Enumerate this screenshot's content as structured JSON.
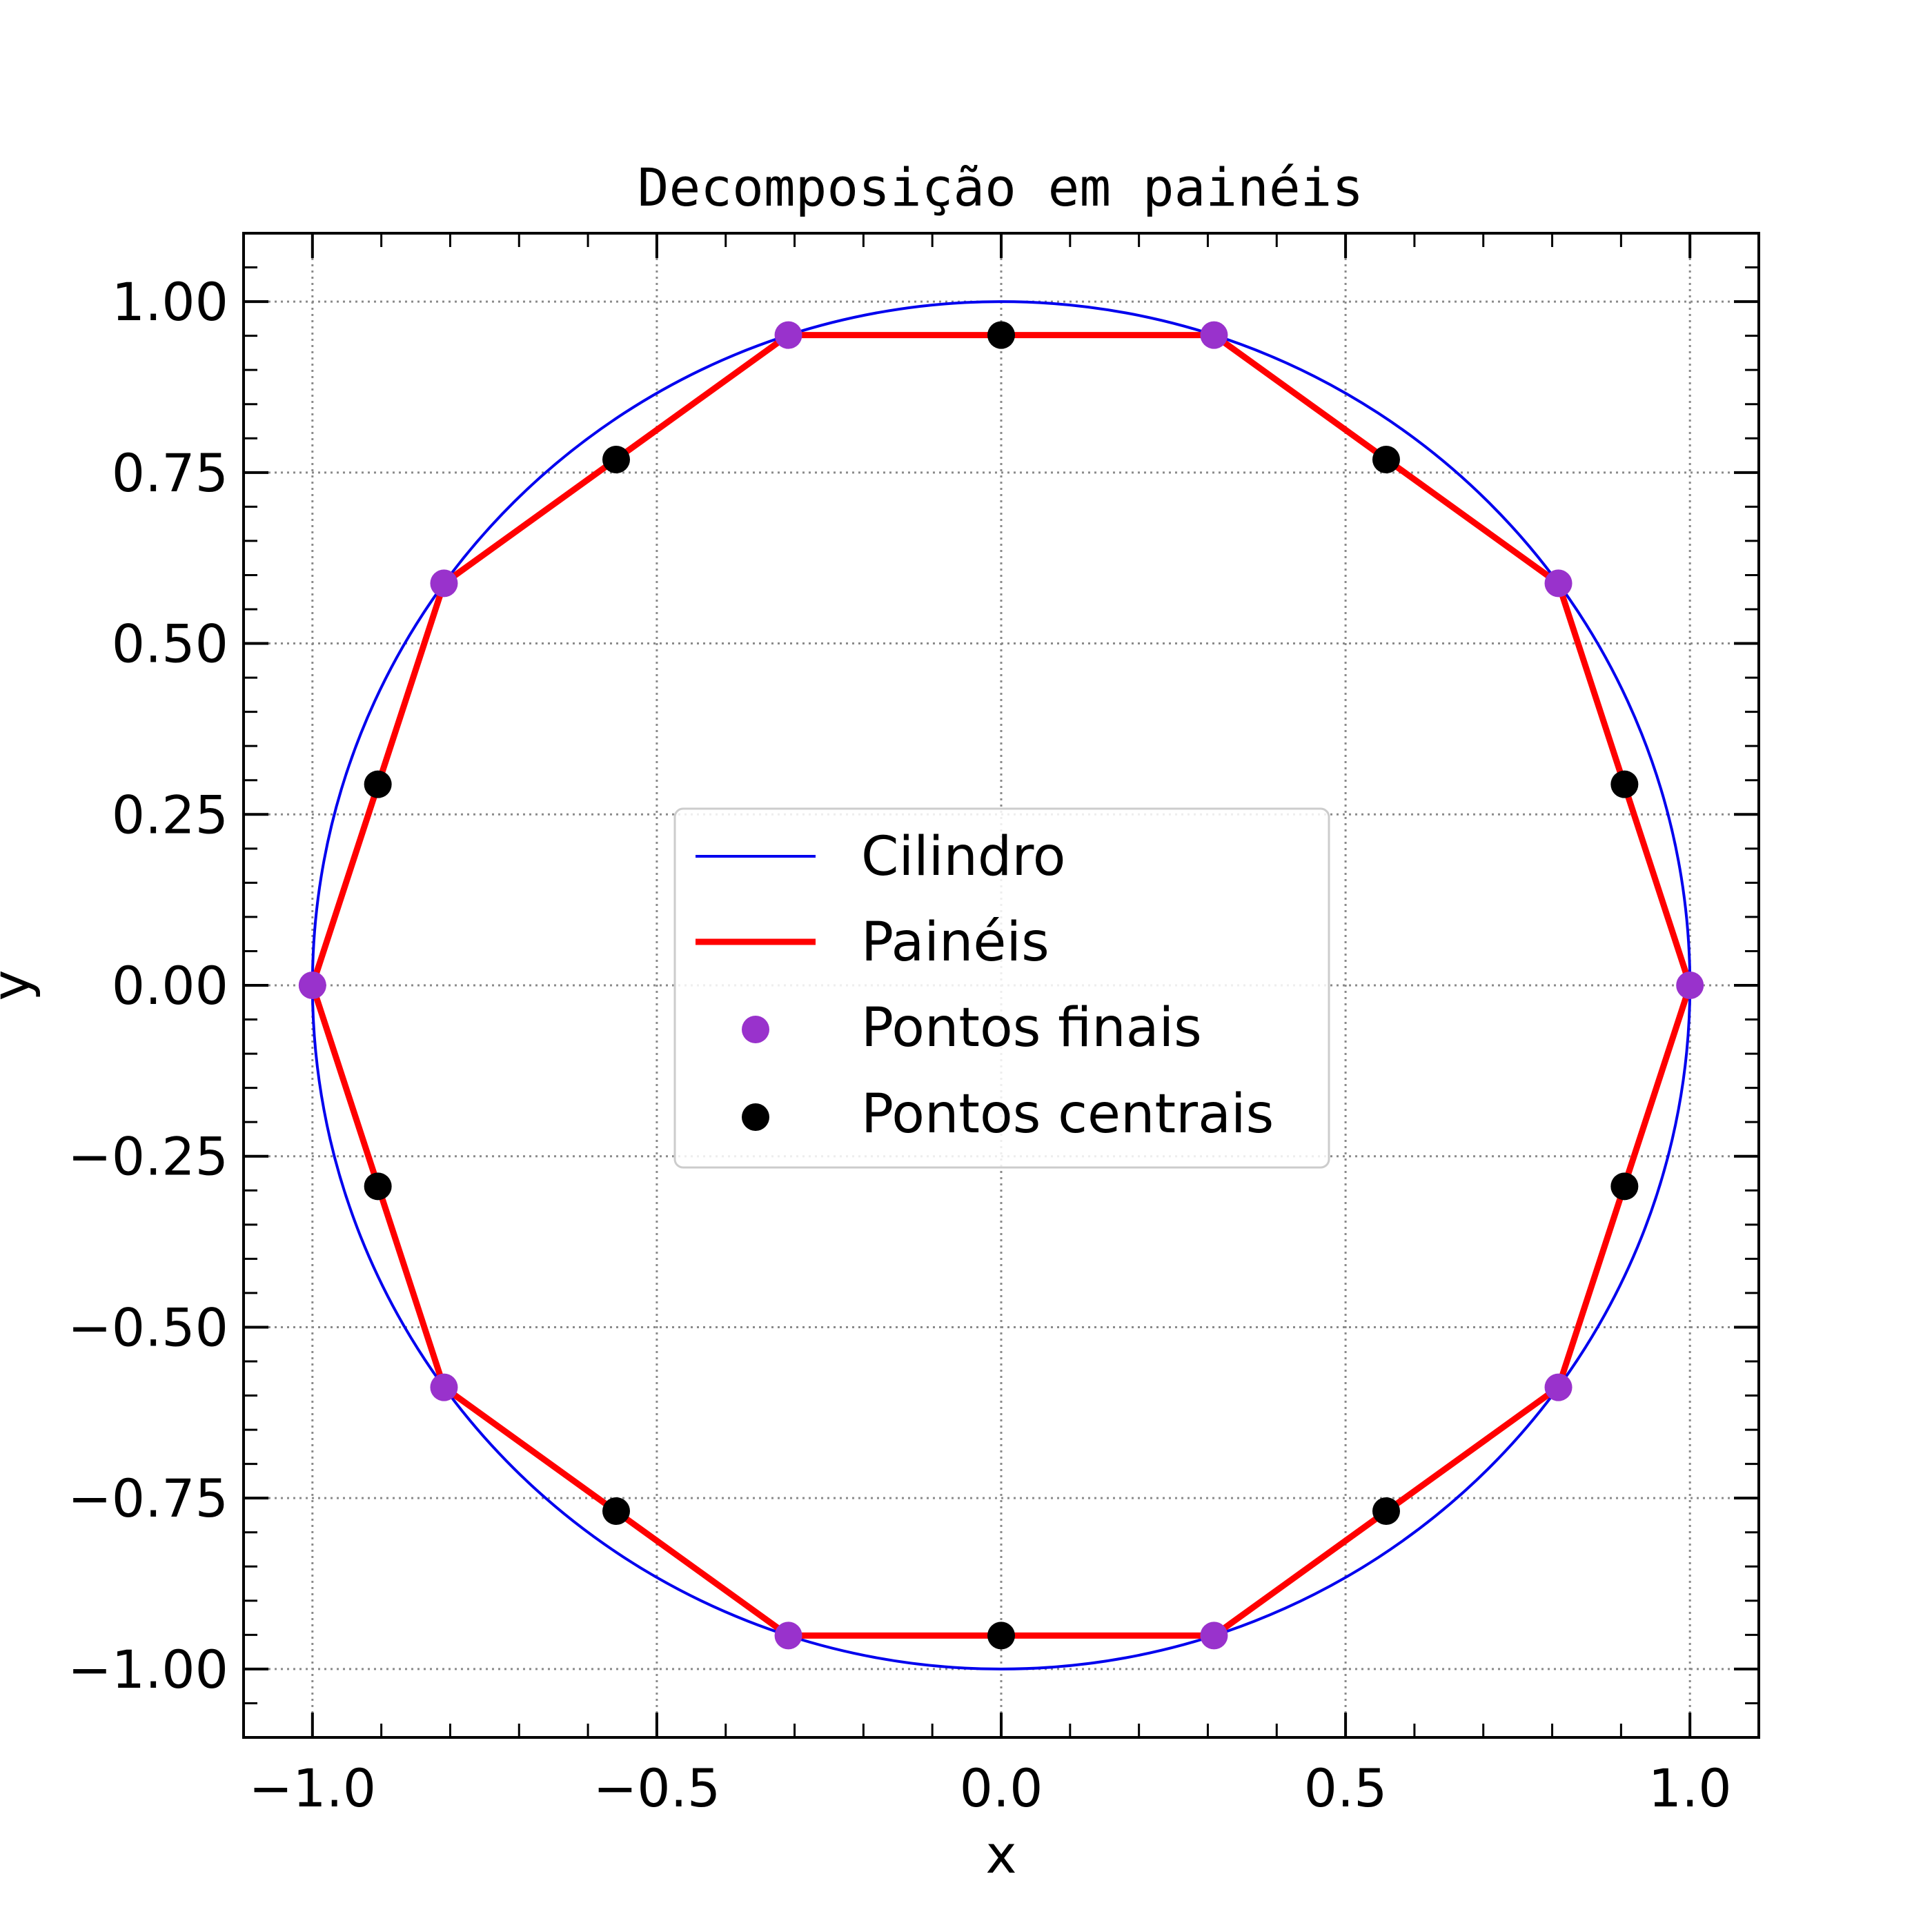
{
  "chart_data": {
    "type": "line",
    "title": "Decomposição em painéis",
    "xlabel": "x",
    "ylabel": "y",
    "xlim": [
      -1.1,
      1.1
    ],
    "ylim": [
      -1.1,
      1.1
    ],
    "grid": true,
    "grid_style": "dotted",
    "legend_position": "center",
    "x_ticks": [
      -1.0,
      -0.5,
      0.0,
      0.5,
      1.0
    ],
    "x_tick_labels": [
      "−1.0",
      "−0.5",
      "0.0",
      "0.5",
      "1.0"
    ],
    "y_ticks": [
      -1.0,
      -0.75,
      -0.5,
      -0.25,
      0.0,
      0.25,
      0.5,
      0.75,
      1.0
    ],
    "y_tick_labels": [
      "−1.00",
      "−0.75",
      "−0.50",
      "−0.25",
      "0.00",
      "0.25",
      "0.50",
      "0.75",
      "1.00"
    ],
    "series": [
      {
        "name": "Cilindro",
        "kind": "circle",
        "color": "#0000ee",
        "center": [
          0,
          0
        ],
        "radius": 1.0
      },
      {
        "name": "Painéis",
        "kind": "line",
        "color": "#ff0000",
        "x": [
          1.0,
          0.809,
          0.309,
          -0.309,
          -0.809,
          -1.0,
          -0.809,
          -0.309,
          0.309,
          0.809,
          1.0
        ],
        "y": [
          0.0,
          0.588,
          0.951,
          0.951,
          0.588,
          0.0,
          -0.588,
          -0.951,
          -0.951,
          -0.588,
          0.0
        ]
      },
      {
        "name": "Pontos finais",
        "kind": "scatter",
        "color": "#9932cc",
        "x": [
          1.0,
          0.809,
          0.309,
          -0.309,
          -0.809,
          -1.0,
          -0.809,
          -0.309,
          0.309,
          0.809
        ],
        "y": [
          0.0,
          0.588,
          0.951,
          0.951,
          0.588,
          0.0,
          -0.588,
          -0.951,
          -0.951,
          -0.588
        ]
      },
      {
        "name": "Pontos centrais",
        "kind": "scatter",
        "color": "#000000",
        "x": [
          0.905,
          0.559,
          0.0,
          -0.559,
          -0.905,
          -0.905,
          -0.559,
          0.0,
          0.559,
          0.905
        ],
        "y": [
          0.294,
          0.769,
          0.951,
          0.769,
          0.294,
          -0.294,
          -0.769,
          -0.951,
          -0.769,
          -0.294
        ]
      }
    ]
  }
}
